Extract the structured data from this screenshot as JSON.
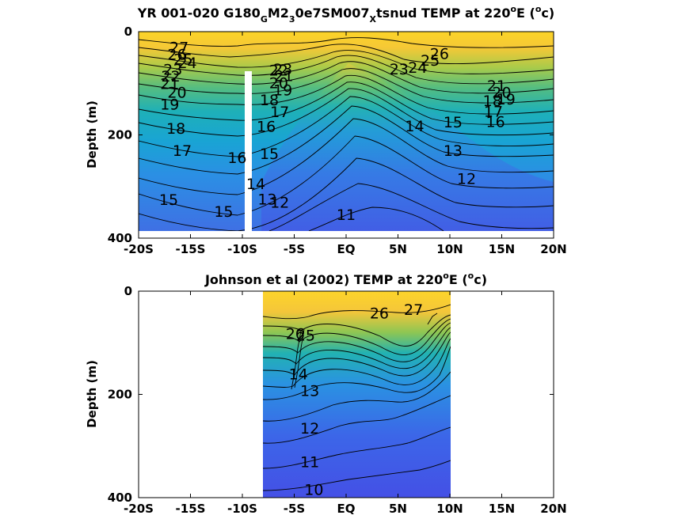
{
  "chart_data": [
    {
      "type": "heatmap",
      "title_parts": [
        "YR 001-020 G180",
        "G",
        "M2",
        "3",
        "0e7SM007",
        "X",
        "tsnud TEMP at 220",
        "o",
        "E (",
        "o",
        "c)"
      ],
      "ylabel": "Depth (m)",
      "xlabel": "",
      "x_range": [
        -20,
        20
      ],
      "y_range": [
        0,
        400
      ],
      "y_reversed": true,
      "x_tick_labels": [
        "-20S",
        "-15S",
        "-10S",
        "-5S",
        "EQ",
        "5N",
        "10N",
        "15N",
        "20N"
      ],
      "y_tick_labels": [
        "0",
        "200",
        "400"
      ],
      "data_extent": {
        "x": [
          -20,
          20
        ],
        "y": [
          0,
          385
        ]
      },
      "gap": {
        "x": [
          -10.6,
          -9.9
        ],
        "y": [
          85,
          385
        ]
      },
      "colormap": [
        "#4250e6",
        "#3f7ee8",
        "#17a2d2",
        "#2fb8a6",
        "#80c55b",
        "#d4c540",
        "#f7c637",
        "#fcd428"
      ],
      "contour_labels": [
        {
          "label": "27",
          "x": -16.1,
          "y": 30
        },
        {
          "label": "26",
          "x": -16.3,
          "y": 44
        },
        {
          "label": "25",
          "x": -15.7,
          "y": 53
        },
        {
          "label": "24",
          "x": -15.3,
          "y": 60
        },
        {
          "label": "23",
          "x": -16.7,
          "y": 73
        },
        {
          "label": "22",
          "x": -16.9,
          "y": 86
        },
        {
          "label": "21",
          "x": -17.0,
          "y": 100
        },
        {
          "label": "20",
          "x": -16.3,
          "y": 117
        },
        {
          "label": "19",
          "x": -17.0,
          "y": 140
        },
        {
          "label": "18",
          "x": -16.4,
          "y": 187
        },
        {
          "label": "17",
          "x": -15.8,
          "y": 230
        },
        {
          "label": "16",
          "x": -10.5,
          "y": 244
        },
        {
          "label": "15",
          "x": -17.1,
          "y": 325
        },
        {
          "label": "15",
          "x": -11.8,
          "y": 348
        },
        {
          "label": "15",
          "x": -7.4,
          "y": 236
        },
        {
          "label": "14",
          "x": -8.7,
          "y": 294
        },
        {
          "label": "13",
          "x": -7.6,
          "y": 324
        },
        {
          "label": "12",
          "x": -6.4,
          "y": 330
        },
        {
          "label": "16",
          "x": -7.7,
          "y": 183
        },
        {
          "label": "17",
          "x": -6.4,
          "y": 155
        },
        {
          "label": "18",
          "x": -7.4,
          "y": 132
        },
        {
          "label": "19",
          "x": -6.1,
          "y": 113
        },
        {
          "label": "20",
          "x": -6.5,
          "y": 99
        },
        {
          "label": "21",
          "x": -6.0,
          "y": 85
        },
        {
          "label": "22",
          "x": -6.5,
          "y": 74
        },
        {
          "label": "23",
          "x": -6.1,
          "y": 72
        },
        {
          "label": "23",
          "x": 5.1,
          "y": 72
        },
        {
          "label": "24",
          "x": 6.9,
          "y": 69
        },
        {
          "label": "25",
          "x": 8.1,
          "y": 55
        },
        {
          "label": "26",
          "x": 9.0,
          "y": 42
        },
        {
          "label": "14",
          "x": 6.6,
          "y": 182
        },
        {
          "label": "15",
          "x": 10.3,
          "y": 175
        },
        {
          "label": "13",
          "x": 10.3,
          "y": 230
        },
        {
          "label": "12",
          "x": 11.6,
          "y": 284
        },
        {
          "label": "11",
          "x": 0.0,
          "y": 354
        },
        {
          "label": "21",
          "x": 14.5,
          "y": 104
        },
        {
          "label": "20",
          "x": 15.0,
          "y": 117
        },
        {
          "label": "19",
          "x": 15.4,
          "y": 130
        },
        {
          "label": "18",
          "x": 14.1,
          "y": 133
        },
        {
          "label": "17",
          "x": 14.2,
          "y": 154
        },
        {
          "label": "16",
          "x": 14.4,
          "y": 174
        }
      ]
    },
    {
      "type": "heatmap",
      "title_parts": [
        "Johnson et al (2002) TEMP at 220",
        "o",
        "E (",
        "o",
        "c)"
      ],
      "ylabel": "Depth (m)",
      "xlabel": "",
      "x_range": [
        -20,
        20
      ],
      "y_range": [
        0,
        400
      ],
      "y_reversed": true,
      "x_tick_labels": [
        "-20S",
        "-15S",
        "-10S",
        "-5S",
        "EQ",
        "5N",
        "10N",
        "15N",
        "20N"
      ],
      "y_tick_labels": [
        "0",
        "200",
        "400"
      ],
      "data_extent": {
        "x": [
          -8,
          10
        ],
        "y": [
          0,
          400
        ]
      },
      "colormap": [
        "#4250e6",
        "#3f7ee8",
        "#17a2d2",
        "#2fb8a6",
        "#80c55b",
        "#d4c540",
        "#f7c637",
        "#fcd428"
      ],
      "contour_labels": [
        {
          "label": "27",
          "x": 6.5,
          "y": 35
        },
        {
          "label": "26",
          "x": 3.2,
          "y": 42
        },
        {
          "label": "26",
          "x": -4.9,
          "y": 82
        },
        {
          "label": "25",
          "x": -3.9,
          "y": 85
        },
        {
          "label": "14",
          "x": -4.6,
          "y": 160
        },
        {
          "label": "13",
          "x": -3.5,
          "y": 192
        },
        {
          "label": "12",
          "x": -3.5,
          "y": 265
        },
        {
          "label": "11",
          "x": -3.5,
          "y": 330
        },
        {
          "label": "10",
          "x": -3.1,
          "y": 384
        }
      ]
    }
  ]
}
